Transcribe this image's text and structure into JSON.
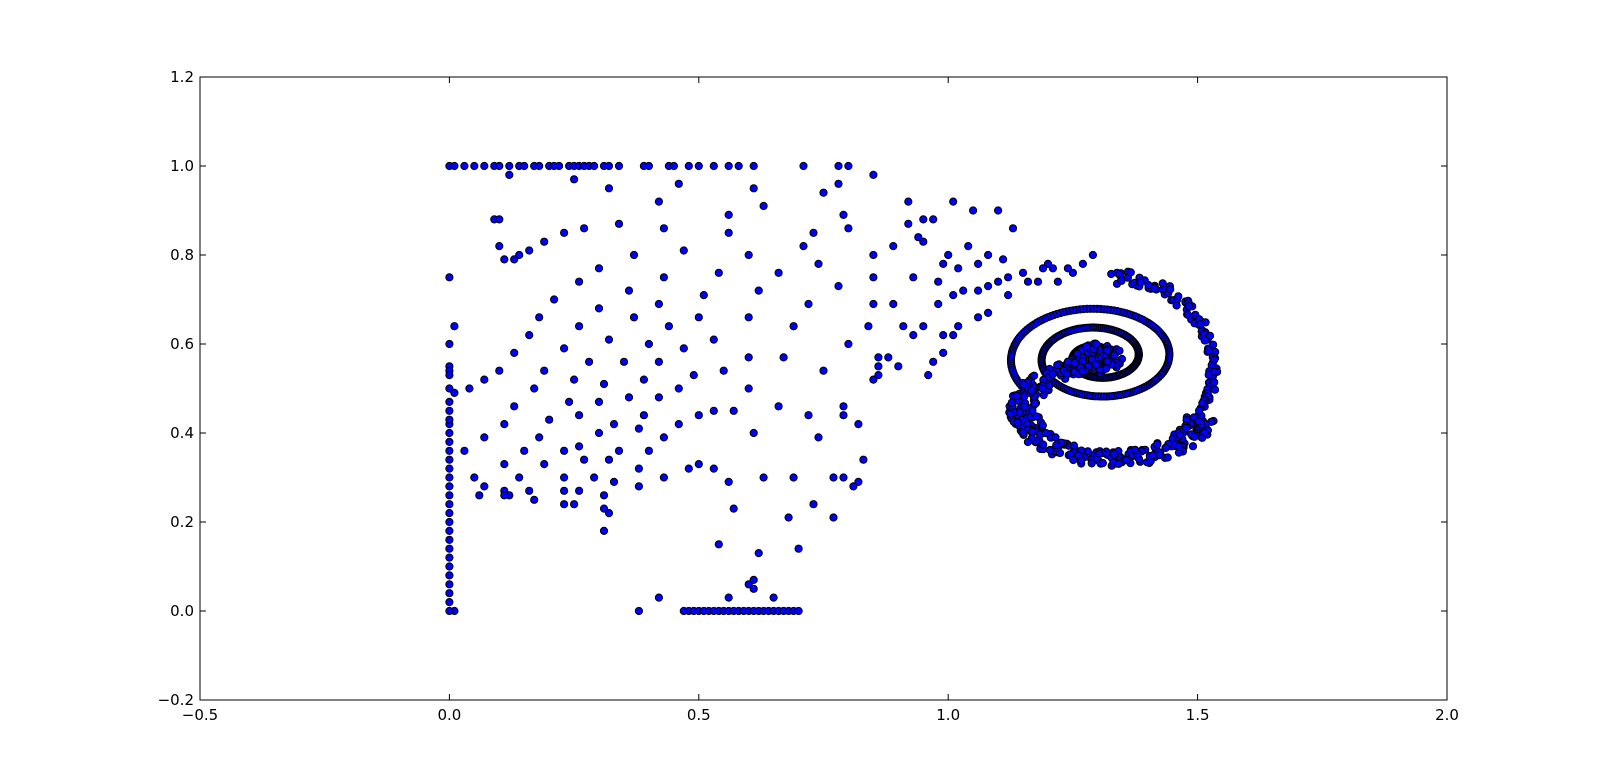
{
  "chart_data": {
    "type": "scatter",
    "title": "",
    "xlabel": "",
    "ylabel": "",
    "xlim": [
      -0.5,
      2.0
    ],
    "ylim": [
      -0.2,
      1.2
    ],
    "xticks": [
      "−0.5",
      "0.0",
      "0.5",
      "1.0",
      "1.5",
      "2.0"
    ],
    "yticks": [
      "−0.2",
      "0.0",
      "0.2",
      "0.4",
      "0.6",
      "0.8",
      "1.0",
      "1.2"
    ],
    "grid": false,
    "legend": "none",
    "marker_color": "#0000ff",
    "marker_edge": "#000000",
    "points": [
      [
        0.0,
        1.0
      ],
      [
        0.01,
        1.0
      ],
      [
        0.03,
        1.0
      ],
      [
        0.05,
        1.0
      ],
      [
        0.07,
        1.0
      ],
      [
        0.09,
        1.0
      ],
      [
        0.1,
        1.0
      ],
      [
        0.12,
        1.0
      ],
      [
        0.14,
        1.0
      ],
      [
        0.15,
        1.0
      ],
      [
        0.17,
        1.0
      ],
      [
        0.18,
        1.0
      ],
      [
        0.2,
        1.0
      ],
      [
        0.21,
        1.0
      ],
      [
        0.22,
        1.0
      ],
      [
        0.24,
        1.0
      ],
      [
        0.25,
        1.0
      ],
      [
        0.26,
        1.0
      ],
      [
        0.27,
        1.0
      ],
      [
        0.28,
        1.0
      ],
      [
        0.29,
        1.0
      ],
      [
        0.31,
        1.0
      ],
      [
        0.32,
        1.0
      ],
      [
        0.34,
        1.0
      ],
      [
        0.39,
        1.0
      ],
      [
        0.4,
        1.0
      ],
      [
        0.44,
        1.0
      ],
      [
        0.45,
        1.0
      ],
      [
        0.48,
        1.0
      ],
      [
        0.5,
        1.0
      ],
      [
        0.53,
        1.0
      ],
      [
        0.56,
        1.0
      ],
      [
        0.58,
        1.0
      ],
      [
        0.61,
        1.0
      ],
      [
        0.71,
        1.0
      ],
      [
        0.78,
        1.0
      ],
      [
        0.8,
        1.0
      ],
      [
        0.85,
        0.98
      ],
      [
        0.25,
        0.97
      ],
      [
        0.46,
        0.96
      ],
      [
        0.32,
        0.95
      ],
      [
        0.61,
        0.95
      ],
      [
        0.75,
        0.94
      ],
      [
        0.78,
        0.96
      ],
      [
        0.42,
        0.92
      ],
      [
        0.63,
        0.91
      ],
      [
        0.79,
        0.89
      ],
      [
        0.56,
        0.89
      ],
      [
        0.09,
        0.88
      ],
      [
        0.1,
        0.88
      ],
      [
        0.8,
        0.86
      ],
      [
        0.34,
        0.87
      ],
      [
        0.43,
        0.86
      ],
      [
        0.27,
        0.86
      ],
      [
        0.73,
        0.85
      ],
      [
        0.56,
        0.85
      ],
      [
        0.23,
        0.85
      ],
      [
        0.19,
        0.83
      ],
      [
        0.71,
        0.82
      ],
      [
        0.1,
        0.82
      ],
      [
        0.16,
        0.81
      ],
      [
        0.47,
        0.81
      ],
      [
        0.6,
        0.8
      ],
      [
        0.37,
        0.8
      ],
      [
        0.11,
        0.79
      ],
      [
        0.13,
        0.79
      ],
      [
        0.14,
        0.8
      ],
      [
        0.12,
        0.98
      ],
      [
        0.74,
        0.78
      ],
      [
        0.3,
        0.77
      ],
      [
        0.66,
        0.76
      ],
      [
        0.54,
        0.76
      ],
      [
        0.0,
        0.75
      ],
      [
        0.43,
        0.75
      ],
      [
        0.26,
        0.74
      ],
      [
        0.36,
        0.72
      ],
      [
        0.62,
        0.72
      ],
      [
        0.78,
        0.73
      ],
      [
        0.51,
        0.71
      ],
      [
        0.21,
        0.7
      ],
      [
        0.42,
        0.69
      ],
      [
        0.72,
        0.69
      ],
      [
        0.3,
        0.68
      ],
      [
        0.16,
        0.62
      ],
      [
        0.18,
        0.66
      ],
      [
        0.5,
        0.66
      ],
      [
        0.6,
        0.66
      ],
      [
        0.37,
        0.66
      ],
      [
        0.01,
        0.64
      ],
      [
        0.26,
        0.64
      ],
      [
        0.44,
        0.64
      ],
      [
        0.69,
        0.64
      ],
      [
        0.32,
        0.61
      ],
      [
        0.53,
        0.61
      ],
      [
        0.0,
        0.6
      ],
      [
        0.8,
        0.6
      ],
      [
        0.23,
        0.59
      ],
      [
        0.4,
        0.6
      ],
      [
        0.13,
        0.58
      ],
      [
        0.47,
        0.59
      ],
      [
        0.6,
        0.57
      ],
      [
        0.35,
        0.56
      ],
      [
        0.0,
        0.55
      ],
      [
        0.0,
        0.54
      ],
      [
        0.28,
        0.56
      ],
      [
        0.67,
        0.57
      ],
      [
        0.19,
        0.54
      ],
      [
        0.0,
        0.53
      ],
      [
        0.42,
        0.56
      ],
      [
        0.1,
        0.54
      ],
      [
        0.55,
        0.54
      ],
      [
        0.49,
        0.53
      ],
      [
        0.25,
        0.52
      ],
      [
        0.39,
        0.52
      ],
      [
        0.75,
        0.54
      ],
      [
        0.07,
        0.52
      ],
      [
        0.31,
        0.51
      ],
      [
        0.0,
        0.5
      ],
      [
        0.01,
        0.49
      ],
      [
        0.04,
        0.5
      ],
      [
        0.17,
        0.5
      ],
      [
        0.46,
        0.5
      ],
      [
        0.36,
        0.48
      ],
      [
        0.6,
        0.5
      ],
      [
        0.24,
        0.47
      ],
      [
        0.0,
        0.47
      ],
      [
        0.13,
        0.46
      ],
      [
        0.3,
        0.47
      ],
      [
        0.0,
        0.45
      ],
      [
        0.42,
        0.48
      ],
      [
        0.79,
        0.46
      ],
      [
        0.66,
        0.46
      ],
      [
        0.5,
        0.44
      ],
      [
        0.53,
        0.45
      ],
      [
        0.57,
        0.45
      ],
      [
        0.39,
        0.44
      ],
      [
        0.26,
        0.44
      ],
      [
        0.33,
        0.42
      ],
      [
        0.79,
        0.44
      ],
      [
        0.2,
        0.43
      ],
      [
        0.11,
        0.42
      ],
      [
        0.72,
        0.44
      ],
      [
        0.46,
        0.42
      ],
      [
        0.82,
        0.42
      ],
      [
        0.38,
        0.41
      ],
      [
        0.61,
        0.4
      ],
      [
        0.3,
        0.4
      ],
      [
        0.74,
        0.39
      ],
      [
        0.43,
        0.39
      ],
      [
        0.18,
        0.39
      ],
      [
        0.07,
        0.39
      ],
      [
        0.26,
        0.37
      ],
      [
        0.03,
        0.36
      ],
      [
        0.15,
        0.36
      ],
      [
        0.34,
        0.36
      ],
      [
        0.23,
        0.36
      ],
      [
        0.4,
        0.36
      ],
      [
        0.27,
        0.34
      ],
      [
        0.32,
        0.34
      ],
      [
        0.83,
        0.34
      ],
      [
        0.11,
        0.33
      ],
      [
        0.19,
        0.33
      ],
      [
        0.5,
        0.33
      ],
      [
        0.48,
        0.32
      ],
      [
        0.53,
        0.32
      ],
      [
        0.38,
        0.32
      ],
      [
        0.43,
        0.3
      ],
      [
        0.56,
        0.29
      ],
      [
        0.63,
        0.3
      ],
      [
        0.69,
        0.3
      ],
      [
        0.77,
        0.3
      ],
      [
        0.79,
        0.3
      ],
      [
        0.05,
        0.3
      ],
      [
        0.14,
        0.3
      ],
      [
        0.23,
        0.3
      ],
      [
        0.29,
        0.3
      ],
      [
        0.33,
        0.29
      ],
      [
        0.82,
        0.29
      ],
      [
        0.81,
        0.28
      ],
      [
        0.07,
        0.28
      ],
      [
        0.38,
        0.28
      ],
      [
        0.16,
        0.27
      ],
      [
        0.11,
        0.27
      ],
      [
        0.23,
        0.27
      ],
      [
        0.06,
        0.26
      ],
      [
        0.12,
        0.26
      ],
      [
        0.26,
        0.27
      ],
      [
        0.11,
        0.26
      ],
      [
        0.17,
        0.25
      ],
      [
        0.31,
        0.26
      ],
      [
        0.25,
        0.24
      ],
      [
        0.73,
        0.24
      ],
      [
        0.23,
        0.24
      ],
      [
        0.31,
        0.23
      ],
      [
        0.57,
        0.23
      ],
      [
        0.32,
        0.22
      ],
      [
        0.68,
        0.21
      ],
      [
        0.77,
        0.21
      ],
      [
        0.31,
        0.18
      ],
      [
        0.54,
        0.15
      ],
      [
        0.7,
        0.14
      ],
      [
        0.62,
        0.13
      ],
      [
        0.61,
        0.07
      ],
      [
        0.6,
        0.06
      ],
      [
        0.61,
        0.05
      ],
      [
        0.65,
        0.03
      ],
      [
        0.56,
        0.03
      ],
      [
        0.42,
        0.03
      ],
      [
        0.38,
        0.0
      ],
      [
        0.01,
        0.0
      ],
      [
        0.47,
        0.0
      ],
      [
        0.48,
        0.0
      ],
      [
        0.49,
        0.0
      ],
      [
        0.5,
        0.0
      ],
      [
        0.51,
        0.0
      ],
      [
        0.52,
        0.0
      ],
      [
        0.53,
        0.0
      ],
      [
        0.54,
        0.0
      ],
      [
        0.55,
        0.0
      ],
      [
        0.56,
        0.0
      ],
      [
        0.57,
        0.0
      ],
      [
        0.58,
        0.0
      ],
      [
        0.59,
        0.0
      ],
      [
        0.6,
        0.0
      ],
      [
        0.61,
        0.0
      ],
      [
        0.62,
        0.0
      ],
      [
        0.63,
        0.0
      ],
      [
        0.64,
        0.0
      ],
      [
        0.65,
        0.0
      ],
      [
        0.66,
        0.0
      ],
      [
        0.67,
        0.0
      ],
      [
        0.68,
        0.0
      ],
      [
        0.69,
        0.0
      ],
      [
        0.7,
        0.0
      ],
      [
        0.0,
        0.0
      ],
      [
        0.0,
        0.02
      ],
      [
        0.0,
        0.04
      ],
      [
        0.0,
        0.06
      ],
      [
        0.0,
        0.08
      ],
      [
        0.0,
        0.1
      ],
      [
        0.0,
        0.12
      ],
      [
        0.0,
        0.14
      ],
      [
        0.0,
        0.16
      ],
      [
        0.0,
        0.18
      ],
      [
        0.0,
        0.2
      ],
      [
        0.0,
        0.22
      ],
      [
        0.0,
        0.24
      ],
      [
        0.0,
        0.26
      ],
      [
        0.0,
        0.28
      ],
      [
        0.0,
        0.3
      ],
      [
        0.0,
        0.32
      ],
      [
        0.0,
        0.34
      ],
      [
        0.0,
        0.36
      ],
      [
        0.0,
        0.38
      ],
      [
        0.0,
        0.4
      ],
      [
        0.0,
        0.42
      ],
      [
        0.0,
        0.43
      ],
      [
        0.92,
        0.92
      ],
      [
        0.95,
        0.88
      ],
      [
        1.01,
        0.92
      ],
      [
        1.05,
        0.9
      ],
      [
        1.1,
        0.9
      ],
      [
        1.13,
        0.86
      ],
      [
        0.94,
        0.84
      ],
      [
        0.97,
        0.88
      ],
      [
        1.0,
        0.8
      ],
      [
        1.04,
        0.82
      ],
      [
        1.08,
        0.8
      ],
      [
        1.11,
        0.79
      ],
      [
        0.89,
        0.82
      ],
      [
        0.92,
        0.87
      ],
      [
        0.95,
        0.83
      ],
      [
        0.99,
        0.78
      ],
      [
        1.02,
        0.77
      ],
      [
        1.06,
        0.78
      ],
      [
        1.12,
        0.75
      ],
      [
        1.15,
        0.76
      ],
      [
        0.85,
        0.8
      ],
      [
        0.85,
        0.75
      ],
      [
        0.93,
        0.75
      ],
      [
        0.98,
        0.74
      ],
      [
        1.03,
        0.72
      ],
      [
        1.08,
        0.73
      ],
      [
        1.1,
        0.74
      ],
      [
        1.16,
        0.74
      ],
      [
        1.18,
        0.74
      ],
      [
        1.22,
        0.74
      ],
      [
        1.2,
        0.78
      ],
      [
        1.24,
        0.77
      ],
      [
        1.27,
        0.78
      ],
      [
        1.29,
        0.8
      ],
      [
        1.19,
        0.77
      ],
      [
        1.21,
        0.77
      ],
      [
        1.25,
        0.76
      ],
      [
        0.85,
        0.69
      ],
      [
        0.89,
        0.69
      ],
      [
        0.98,
        0.69
      ],
      [
        1.01,
        0.71
      ],
      [
        1.06,
        0.72
      ],
      [
        1.12,
        0.71
      ],
      [
        0.91,
        0.64
      ],
      [
        0.95,
        0.64
      ],
      [
        1.02,
        0.64
      ],
      [
        1.06,
        0.66
      ],
      [
        1.08,
        0.67
      ],
      [
        0.84,
        0.64
      ],
      [
        0.93,
        0.62
      ],
      [
        0.99,
        0.62
      ],
      [
        1.01,
        0.62
      ],
      [
        0.86,
        0.57
      ],
      [
        0.88,
        0.57
      ],
      [
        0.9,
        0.55
      ],
      [
        0.97,
        0.56
      ],
      [
        0.99,
        0.58
      ],
      [
        0.86,
        0.53
      ],
      [
        0.86,
        0.55
      ],
      [
        0.96,
        0.53
      ],
      [
        0.85,
        0.52
      ]
    ],
    "clusters": [
      {
        "kind": "spiral",
        "center": [
          1.3,
          0.57
        ],
        "turns": 2.6,
        "r_start": 0.02,
        "r_end": 0.18,
        "aspect_y": 0.55,
        "count": 380
      },
      {
        "kind": "band",
        "x_center": 1.33,
        "y_center": 0.45,
        "x_radius": 0.2,
        "y_radius": 0.12,
        "count": 320
      },
      {
        "kind": "arc",
        "x_from": 1.27,
        "x_to": 1.54,
        "y_from": 0.77,
        "y_to": 0.4,
        "count": 120
      }
    ]
  }
}
